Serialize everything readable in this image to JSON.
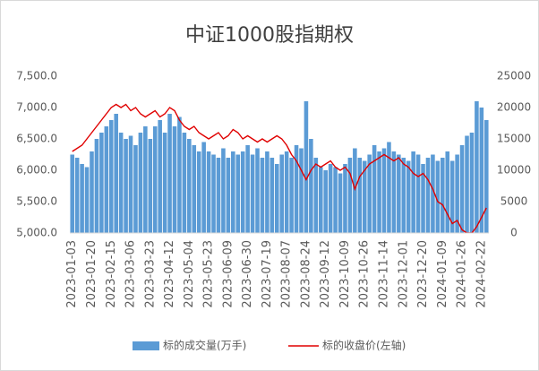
{
  "chart_data": {
    "type": "bar",
    "title": "中证1000股指期权",
    "categories": [
      "2023-01-03",
      null,
      null,
      null,
      "2023-01-20",
      null,
      null,
      null,
      "2023-02-15",
      null,
      null,
      null,
      "2023-03-06",
      null,
      null,
      null,
      "2023-03-23",
      null,
      null,
      null,
      "2023-04-12",
      null,
      null,
      null,
      "2023-05-04",
      null,
      null,
      null,
      "2023-05-23",
      null,
      null,
      null,
      "2023-06-09",
      null,
      null,
      null,
      "2023-06-30",
      null,
      null,
      null,
      "2023-07-19",
      null,
      null,
      null,
      "2023-08-07",
      null,
      null,
      null,
      "2023-08-24",
      null,
      null,
      null,
      "2023-09-12",
      null,
      null,
      null,
      "2023-10-09",
      null,
      null,
      null,
      "2023-10-26",
      null,
      null,
      null,
      "2023-11-14",
      null,
      null,
      null,
      "2023-12-01",
      null,
      null,
      null,
      "2023-12-20",
      null,
      null,
      null,
      "2024-01-09",
      null,
      null,
      null,
      "2024-01-26",
      null,
      null,
      null,
      "2024-02-22",
      null
    ],
    "series": [
      {
        "name": "标的成交量(万手)",
        "type": "bar",
        "axis": "y2",
        "color": "#5b9bd5",
        "values": [
          12500,
          12000,
          11000,
          10500,
          13000,
          15000,
          16000,
          17000,
          18000,
          19000,
          16000,
          15000,
          15500,
          14000,
          16000,
          17000,
          15000,
          17000,
          18000,
          16000,
          19000,
          17000,
          18500,
          16000,
          15000,
          14000,
          13000,
          14500,
          13000,
          12500,
          12000,
          13500,
          12000,
          13000,
          12500,
          13000,
          14000,
          12500,
          13500,
          12000,
          13000,
          12000,
          11000,
          12500,
          13000,
          12000,
          14000,
          13500,
          21000,
          15000,
          12000,
          10500,
          10000,
          11000,
          10500,
          9500,
          11000,
          12000,
          13500,
          12000,
          11500,
          12500,
          14000,
          13000,
          13500,
          14500,
          13000,
          12500,
          12000,
          11500,
          13000,
          12500,
          11000,
          12000,
          12500,
          11500,
          12000,
          13000,
          11500,
          12500,
          14000,
          15500,
          16000,
          21000,
          20000,
          18000
        ]
      },
      {
        "name": "标的收盘价(左轴)",
        "type": "line",
        "color": "#e00000",
        "values": [
          6300,
          6350,
          6400,
          6500,
          6600,
          6700,
          6800,
          6900,
          7000,
          7050,
          7000,
          7050,
          6950,
          7000,
          6900,
          6850,
          6900,
          6950,
          6850,
          6900,
          7000,
          6950,
          6800,
          6700,
          6650,
          6700,
          6600,
          6550,
          6500,
          6550,
          6600,
          6500,
          6550,
          6650,
          6600,
          6500,
          6550,
          6500,
          6450,
          6500,
          6450,
          6500,
          6550,
          6500,
          6400,
          6250,
          6150,
          6000,
          5850,
          6000,
          6100,
          6050,
          6100,
          6150,
          6050,
          6000,
          6050,
          5950,
          5700,
          5900,
          6000,
          6100,
          6150,
          6200,
          6250,
          6200,
          6150,
          6200,
          6100,
          6050,
          5950,
          5900,
          5950,
          5850,
          5700,
          5500,
          5450,
          5300,
          5150,
          5200,
          5050,
          5000,
          5000,
          5100,
          5250,
          5400
        ]
      }
    ],
    "ylim": [
      5000,
      7500
    ],
    "yticks": [
      {
        "value": 5000,
        "label": "5,000.0"
      },
      {
        "value": 5500,
        "label": "5,500.0"
      },
      {
        "value": 6000,
        "label": "6,000.0"
      },
      {
        "value": 6500,
        "label": "6,500.0"
      },
      {
        "value": 7000,
        "label": "7,000.0"
      },
      {
        "value": 7500,
        "label": "7,500.0"
      }
    ],
    "y2lim": [
      0,
      25000
    ],
    "y2ticks": [
      0,
      5000,
      10000,
      15000,
      20000,
      25000
    ],
    "legend": "bottom"
  }
}
